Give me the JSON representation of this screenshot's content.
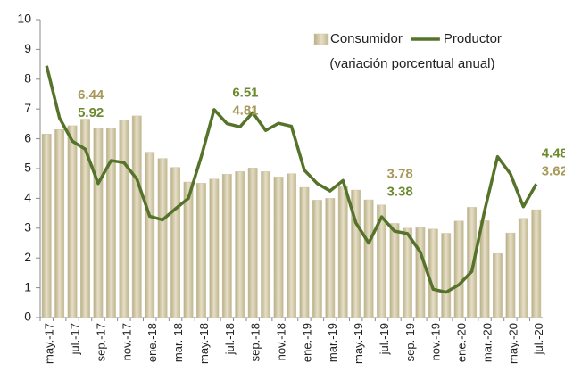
{
  "chart_data": {
    "type": "bar-line",
    "categories": [
      "may.-17",
      null,
      "jul.-17",
      null,
      "sep.-17",
      null,
      "nov.-17",
      null,
      "ene.-18",
      null,
      "mar.-18",
      null,
      "may.-18",
      null,
      "jul.-18",
      null,
      "sep.-18",
      null,
      "nov.-18",
      null,
      "ene.-19",
      null,
      "mar.-19",
      null,
      "may.-19",
      null,
      "jul.-19",
      null,
      "sep.-19",
      null,
      "nov.-19",
      null,
      "ene.-20",
      null,
      "mar.-20",
      null,
      "may.-20",
      null,
      "jul.-20"
    ],
    "series": [
      {
        "name": "Consumidor",
        "kind": "bar",
        "color": "#cfc6a6",
        "values": [
          6.16,
          6.31,
          6.44,
          6.66,
          6.35,
          6.37,
          6.63,
          6.77,
          5.55,
          5.34,
          5.04,
          4.55,
          4.51,
          4.65,
          4.81,
          4.9,
          5.02,
          4.9,
          4.72,
          4.83,
          4.37,
          3.94,
          4.0,
          4.41,
          4.28,
          3.95,
          3.78,
          3.16,
          3.0,
          3.02,
          2.97,
          2.83,
          3.24,
          3.7,
          3.25,
          2.15,
          2.84,
          3.33,
          3.62
        ],
        "value_labels": [
          null,
          null,
          "6.44",
          null,
          null,
          null,
          null,
          null,
          null,
          null,
          null,
          null,
          null,
          null,
          "4.81",
          null,
          null,
          null,
          null,
          null,
          null,
          null,
          null,
          null,
          null,
          null,
          "3.78",
          null,
          null,
          null,
          null,
          null,
          null,
          null,
          null,
          null,
          null,
          null,
          "3.62"
        ],
        "label_color": "#a8995a"
      },
      {
        "name": "Productor",
        "kind": "line",
        "color": "#55732a",
        "values": [
          8.45,
          6.7,
          5.92,
          5.65,
          4.5,
          5.27,
          5.2,
          4.65,
          3.4,
          3.28,
          3.65,
          4.0,
          5.4,
          6.98,
          6.51,
          6.4,
          6.88,
          6.28,
          6.52,
          6.42,
          4.95,
          4.5,
          4.25,
          4.6,
          3.18,
          2.5,
          3.38,
          2.9,
          2.82,
          2.2,
          0.95,
          0.85,
          1.1,
          1.55,
          3.6,
          5.4,
          4.82,
          3.72,
          4.48
        ],
        "value_labels": [
          null,
          null,
          "5.92",
          null,
          null,
          null,
          null,
          null,
          null,
          null,
          null,
          null,
          null,
          null,
          "6.51",
          null,
          null,
          null,
          null,
          null,
          null,
          null,
          null,
          null,
          null,
          null,
          "3.38",
          null,
          null,
          null,
          null,
          null,
          null,
          null,
          null,
          null,
          null,
          null,
          "4.48"
        ],
        "label_color": "#6b8a2e"
      }
    ],
    "legend_note": "(variación porcentual anual)",
    "legend_position": "top-right",
    "ylim": [
      0,
      10
    ],
    "yticks": [
      0,
      1,
      2,
      3,
      4,
      5,
      6,
      7,
      8,
      9,
      10
    ],
    "grid": false
  }
}
